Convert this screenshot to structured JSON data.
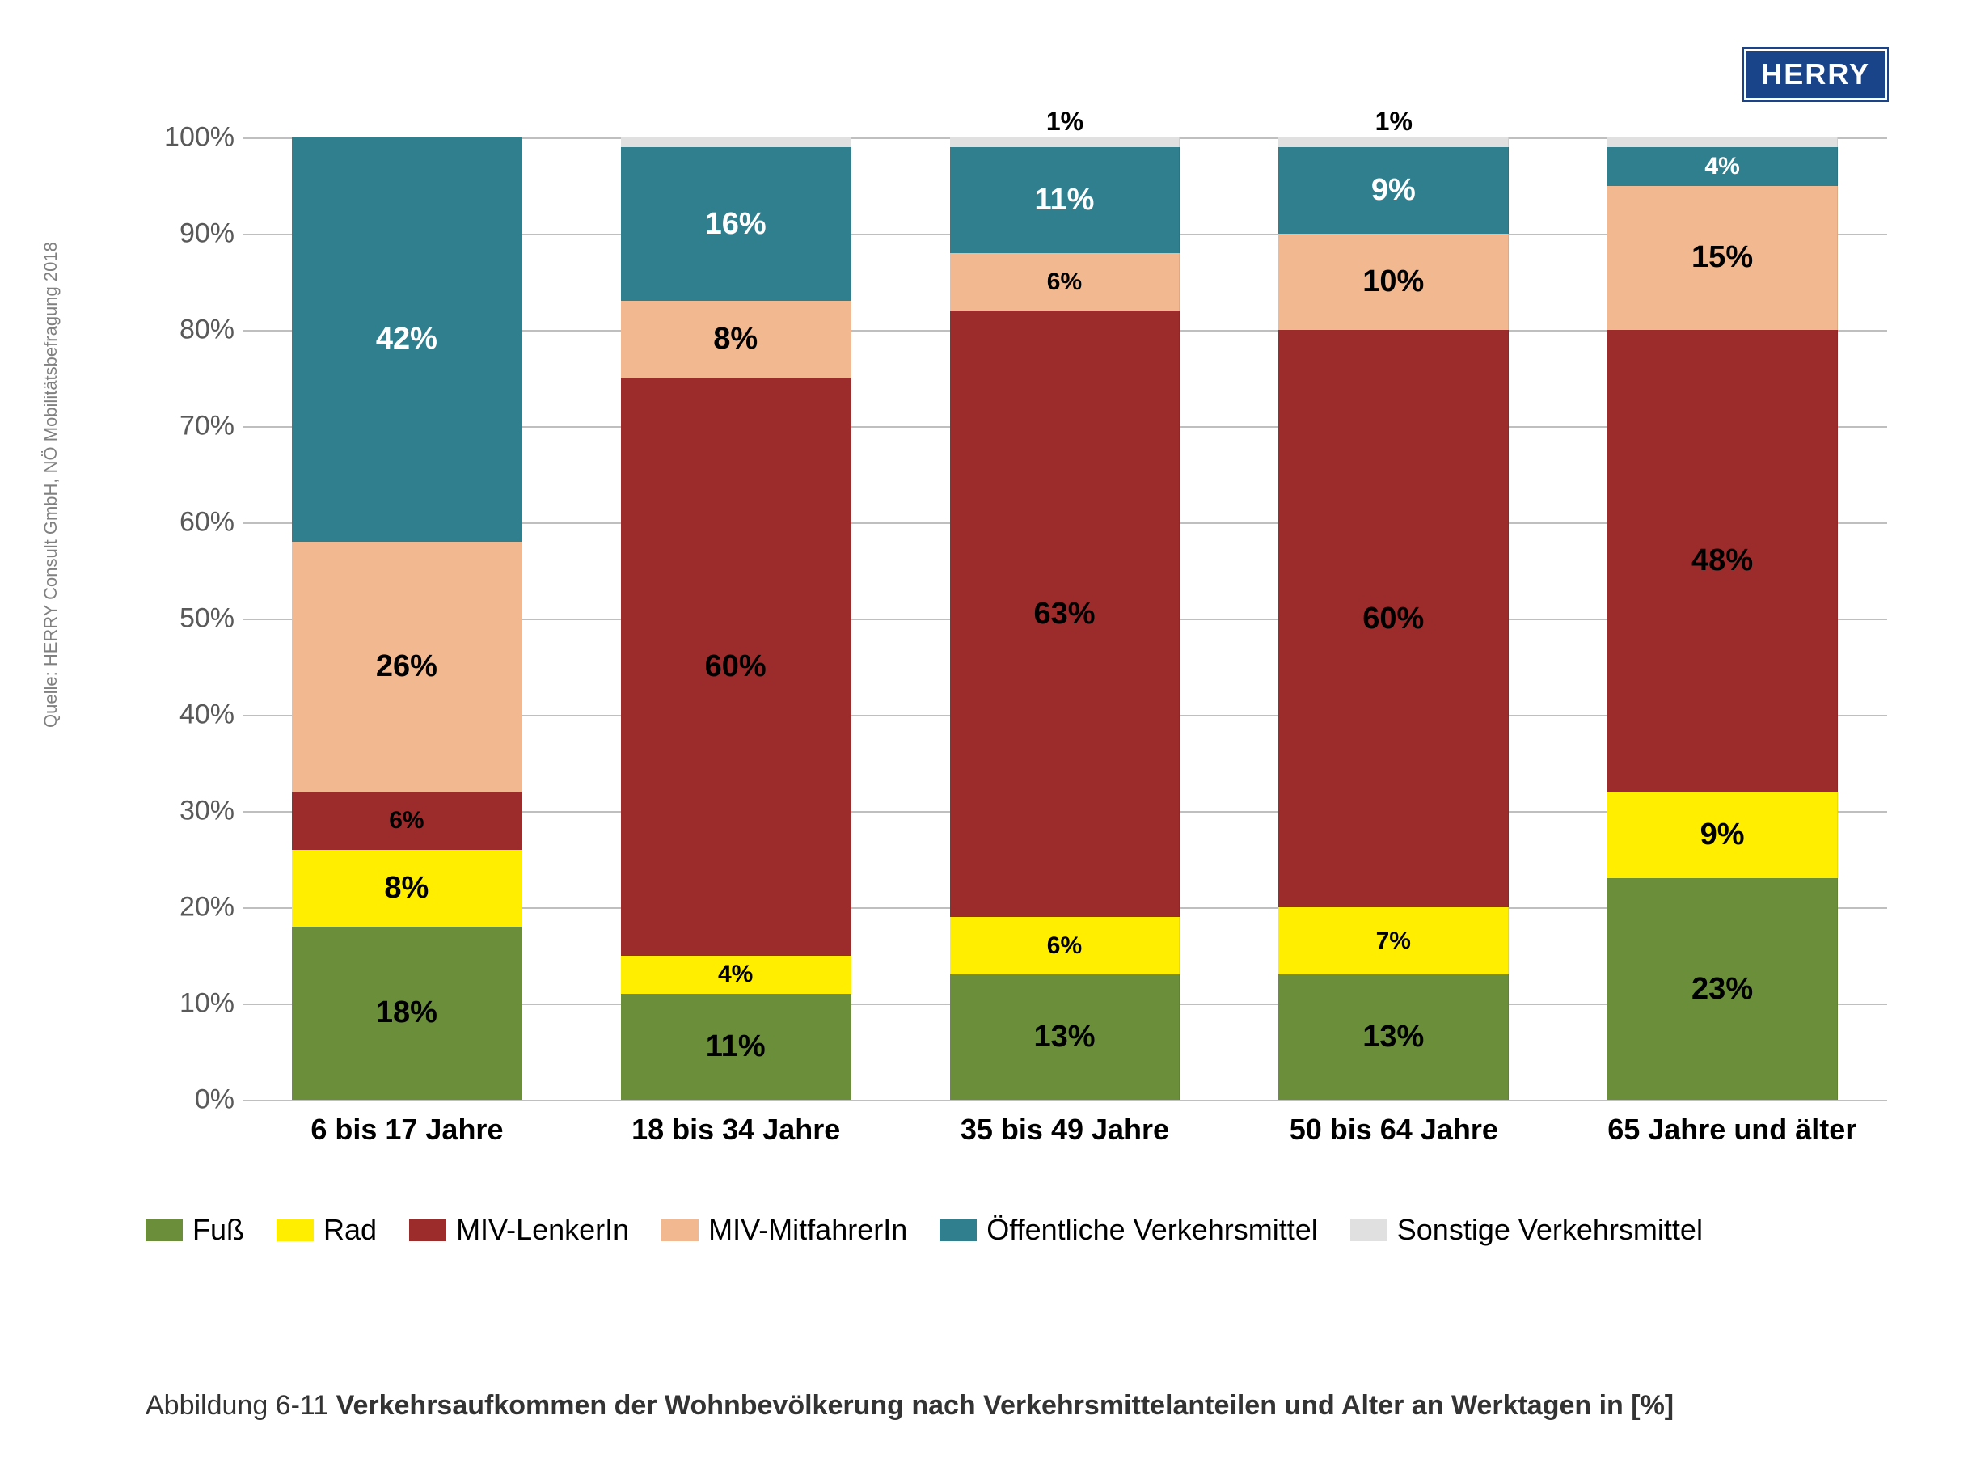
{
  "logo": "HERRY",
  "source": "Quelle: HERRY Consult GmbH, NÖ Mobilitätsbefragung 2018",
  "caption_prefix": "Abbildung 6-11 ",
  "caption_title": "Verkehrsaufkommen der Wohnbevölkerung nach Verkehrsmittelanteilen und Alter an Werktagen in [%]",
  "chart": {
    "type": "stacked-bar-100",
    "ylim": [
      0,
      100
    ],
    "ytick_step": 10,
    "y_suffix": "%",
    "grid_color": "#bfbfbf",
    "background_color": "#ffffff",
    "bar_width_pct": 14,
    "label_fontsize": 38,
    "axis_fontsize": 34,
    "categories": [
      "6 bis 17 Jahre",
      "18 bis 34 Jahre",
      "35 bis 49 Jahre",
      "50 bis 64 Jahre",
      "65 Jahre und älter"
    ],
    "series": [
      {
        "key": "fuss",
        "label": "Fuß",
        "color": "#6a8e3a"
      },
      {
        "key": "rad",
        "label": "Rad",
        "color": "#ffee00"
      },
      {
        "key": "miv_lenker",
        "label": "MIV-LenkerIn",
        "color": "#9c2b2b"
      },
      {
        "key": "miv_mitfahrer",
        "label": "MIV-MitfahrerIn",
        "color": "#f2b88f"
      },
      {
        "key": "oev",
        "label": "Öffentliche Verkehrsmittel",
        "color": "#2f7f8f"
      },
      {
        "key": "sonst",
        "label": "Sonstige Verkehrsmittel",
        "color": "#e0e0e0"
      }
    ],
    "data": [
      {
        "fuss": 18,
        "rad": 8,
        "miv_lenker": 6,
        "miv_mitfahrer": 26,
        "oev": 42,
        "sonst": 0
      },
      {
        "fuss": 11,
        "rad": 4,
        "miv_lenker": 60,
        "miv_mitfahrer": 8,
        "oev": 16,
        "sonst": 1
      },
      {
        "fuss": 13,
        "rad": 6,
        "miv_lenker": 63,
        "miv_mitfahrer": 6,
        "oev": 11,
        "sonst": 1
      },
      {
        "fuss": 13,
        "rad": 7,
        "miv_lenker": 60,
        "miv_mitfahrer": 10,
        "oev": 9,
        "sonst": 1
      },
      {
        "fuss": 23,
        "rad": 9,
        "miv_lenker": 48,
        "miv_mitfahrer": 15,
        "oev": 4,
        "sonst": 1
      }
    ],
    "outside_labels": [
      null,
      null,
      {
        "text": "1%",
        "top_offset": -38
      },
      {
        "text": "1%",
        "top_offset": -38
      },
      null
    ],
    "label_text_colors": {
      "fuss": "#000000",
      "rad": "#000000",
      "miv_lenker": "#000000",
      "miv_mitfahrer": "#000000",
      "oev": "#ffffff",
      "sonst": "#000000"
    },
    "hide_label_below": 1
  }
}
